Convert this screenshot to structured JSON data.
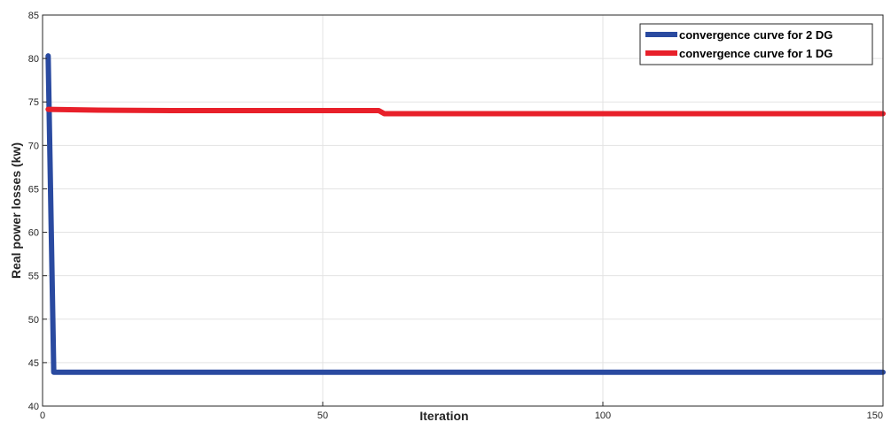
{
  "chart_data": {
    "type": "line",
    "title": "",
    "xlabel": "Iteration",
    "ylabel": "Real power losses (kw)",
    "xlim": [
      0,
      150
    ],
    "ylim": [
      40,
      85
    ],
    "xticks": [
      0,
      50,
      100,
      150
    ],
    "yticks": [
      40,
      45,
      50,
      55,
      60,
      65,
      70,
      75,
      80,
      85
    ],
    "grid": true,
    "legend_position": "top-right",
    "series": [
      {
        "name": "convergence curve for 2 DG",
        "color": "#2a4aa0",
        "x": [
          1,
          2,
          150
        ],
        "y": [
          80.3,
          43.9,
          43.9
        ]
      },
      {
        "name": "convergence curve for 1 DG",
        "color": "#e8202a",
        "x": [
          1,
          10,
          23,
          60,
          61,
          150
        ],
        "y": [
          74.15,
          74.05,
          74.0,
          74.0,
          73.65,
          73.65
        ]
      }
    ]
  }
}
